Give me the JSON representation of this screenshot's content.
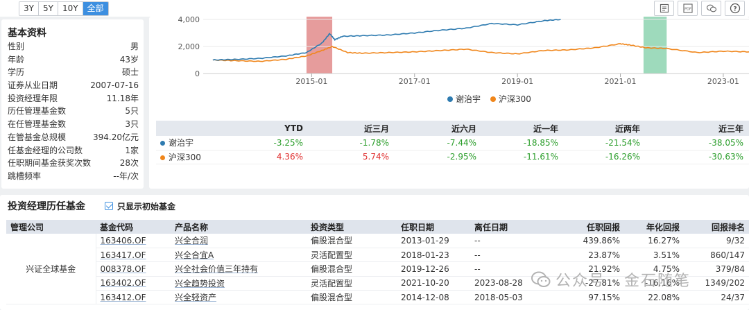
{
  "range_buttons": [
    "3Y",
    "5Y",
    "10Y",
    "全部"
  ],
  "active_range": "全部",
  "tool_icons": [
    "data-table-icon",
    "pdf-icon",
    "comment-icon",
    "help-icon"
  ],
  "basic": {
    "title": "基本资料",
    "rows": [
      {
        "label": "性别",
        "value": "男"
      },
      {
        "label": "年龄",
        "value": "43岁"
      },
      {
        "label": "学历",
        "value": "硕士"
      },
      {
        "label": "证券从业日期",
        "value": "2007-07-16"
      },
      {
        "label": "投资经理年限",
        "value": "11.18年"
      },
      {
        "label": "历任管理基金数",
        "value": "5只"
      },
      {
        "label": "在任管理基金数",
        "value": "3只"
      },
      {
        "label": "在管基金总规模",
        "value": "394.20亿元"
      },
      {
        "label": "任基金经理的公司数",
        "value": "1家"
      },
      {
        "label": "任职期间基金获奖次数",
        "value": "28次"
      },
      {
        "label": "跳槽频率",
        "value": "--年/次"
      }
    ]
  },
  "chart_data": {
    "type": "line",
    "y_ticks": [
      "4,000",
      "2,000",
      "0"
    ],
    "ylim": [
      0,
      4000
    ],
    "x_ticks": [
      "2015-01",
      "2017-01",
      "2019-01",
      "2021-01",
      "2023-01"
    ],
    "x_range": [
      2013.0,
      2023.5
    ],
    "highlight_bands": [
      {
        "from": 2014.9,
        "to": 2015.4,
        "color": "#e28b8b"
      },
      {
        "from": 2021.45,
        "to": 2021.9,
        "color": "#8dd3b0"
      }
    ],
    "series": [
      {
        "name": "谢治宇",
        "color": "#2e7bb0",
        "x": [
          2013.08,
          2013.5,
          2014.0,
          2014.5,
          2014.9,
          2015.2,
          2015.35,
          2015.45,
          2015.6,
          2016.0,
          2016.5,
          2017.0,
          2017.5,
          2018.0,
          2018.5,
          2019.0,
          2019.5,
          2019.84
        ],
        "y": [
          1000,
          1040,
          1120,
          1300,
          1550,
          2250,
          2950,
          2500,
          2750,
          2800,
          2850,
          3000,
          3200,
          3350,
          3700,
          3600,
          3900,
          4000
        ]
      },
      {
        "name": "沪深300",
        "color": "#f0861b",
        "x": [
          2013.08,
          2013.5,
          2014.0,
          2014.5,
          2014.9,
          2015.2,
          2015.4,
          2015.7,
          2016.0,
          2016.5,
          2017.0,
          2017.5,
          2018.0,
          2018.5,
          2019.0,
          2019.5,
          2020.0,
          2020.5,
          2021.0,
          2021.2,
          2021.5,
          2021.9,
          2022.5,
          2023.0,
          2023.5
        ],
        "y": [
          1000,
          950,
          900,
          1050,
          1300,
          1700,
          2000,
          1550,
          1500,
          1550,
          1600,
          1700,
          1800,
          1550,
          1450,
          1700,
          1750,
          1900,
          2200,
          2100,
          1900,
          1850,
          1550,
          1650,
          1600
        ]
      }
    ]
  },
  "perf": {
    "headers": [
      "",
      "YTD",
      "近三月",
      "近六月",
      "近一年",
      "近两年",
      "近三年"
    ],
    "rows": [
      {
        "name": "谢治宇",
        "color": "#2e7bb0",
        "values": [
          "-3.25%",
          "-1.78%",
          "-7.44%",
          "-18.85%",
          "-21.54%",
          "-38.05%"
        ],
        "value_colors": [
          "#2a9d2a",
          "#2a9d2a",
          "#2a9d2a",
          "#2a9d2a",
          "#2a9d2a",
          "#2a9d2a"
        ]
      },
      {
        "name": "沪深300",
        "color": "#f0861b",
        "values": [
          "4.36%",
          "5.74%",
          "-2.95%",
          "-11.61%",
          "-16.26%",
          "-30.63%"
        ],
        "value_colors": [
          "#e03030",
          "#e03030",
          "#2a9d2a",
          "#2a9d2a",
          "#2a9d2a",
          "#2a9d2a"
        ]
      }
    ]
  },
  "history": {
    "title": "投资经理历任基金",
    "checkbox_label": "只显示初始基金",
    "headers": [
      "管理公司",
      "基金代码",
      "产品名称",
      "投资类型",
      "任职日期",
      "离任日期",
      "任职回报",
      "年化回报",
      "回报排名"
    ],
    "company": "兴证全球基金",
    "rows": [
      {
        "code": "163406.OF",
        "name": "兴全合润",
        "type": "偏股混合型",
        "start": "2013-01-29",
        "end": "--",
        "ret": "439.86%",
        "ann": "16.27%",
        "rank": "9/32"
      },
      {
        "code": "163417.OF",
        "name": "兴全合宜A",
        "type": "灵活配置型",
        "start": "2018-01-23",
        "end": "--",
        "ret": "23.87%",
        "ann": "3.51%",
        "rank": "860/147"
      },
      {
        "code": "008378.OF",
        "name": "兴全社会价值三年持有",
        "type": "偏股混合型",
        "start": "2019-12-26",
        "end": "--",
        "ret": "21.92%",
        "ann": "4.75%",
        "rank": "379/84"
      },
      {
        "code": "163402.OF",
        "name": "兴全趋势投资",
        "type": "灵活配置型",
        "start": "2021-10-20",
        "end": "2023-08-28",
        "ret": "-27.81%",
        "ann": "-16.16%",
        "rank": "1349/202"
      },
      {
        "code": "163412.OF",
        "name": "兴全轻资产",
        "type": "偏股混合型",
        "start": "2014-12-08",
        "end": "2018-05-03",
        "ret": "97.15%",
        "ann": "22.08%",
        "rank": "24/37"
      }
    ]
  },
  "watermark": "公众号 · 金石随笔"
}
